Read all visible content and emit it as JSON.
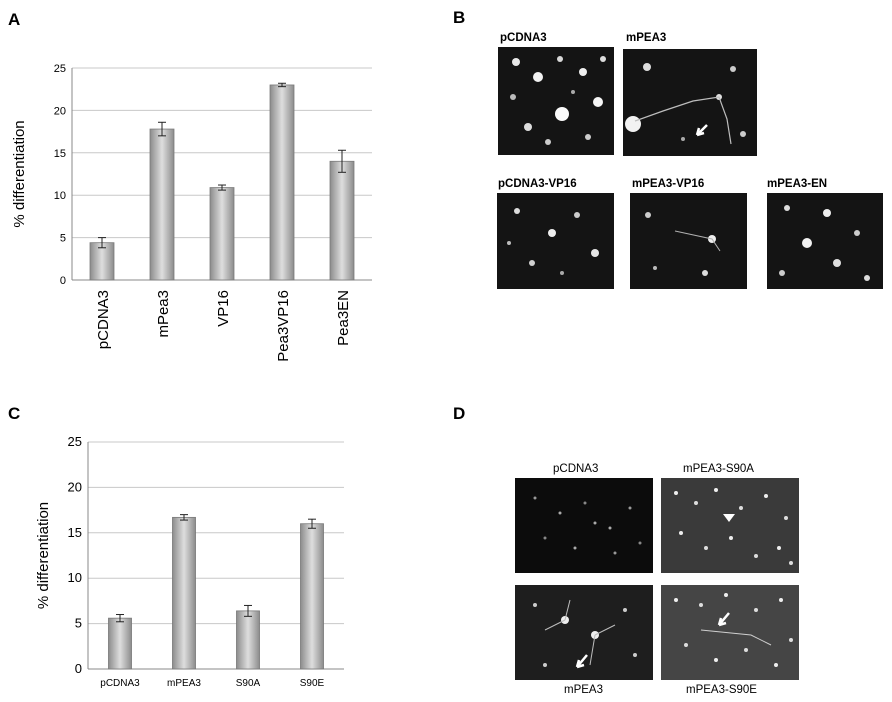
{
  "panels": {
    "A": {
      "letter": "A"
    },
    "B": {
      "letter": "B"
    },
    "C": {
      "letter": "C"
    },
    "D": {
      "letter": "D"
    }
  },
  "chart_data": [
    {
      "panel": "A",
      "type": "bar",
      "categories": [
        "pCDNA3",
        "mPea3",
        "VP16",
        "Pea3VP16",
        "Pea3EN"
      ],
      "values": [
        4.4,
        17.8,
        10.9,
        23.0,
        14.0
      ],
      "errors": [
        0.6,
        0.8,
        0.3,
        0.2,
        1.3
      ],
      "title": "",
      "xlabel": "",
      "ylabel": "% differentiation",
      "ylim": [
        0,
        25
      ],
      "yticks": [
        0,
        5,
        10,
        15,
        20,
        25
      ],
      "grid": true,
      "x_tick_rotation": "vertical"
    },
    {
      "panel": "C",
      "type": "bar",
      "categories": [
        "pCDNA3",
        "mPEA3",
        "S90A",
        "S90E"
      ],
      "values": [
        5.6,
        16.7,
        6.4,
        16.0
      ],
      "errors": [
        0.4,
        0.3,
        0.6,
        0.5
      ],
      "title": "",
      "xlabel": "",
      "ylabel": "% differentiation",
      "ylim": [
        0,
        25
      ],
      "yticks": [
        0,
        5,
        10,
        15,
        20,
        25
      ],
      "grid": true,
      "x_tick_rotation": "horizontal"
    }
  ],
  "micrographs_B": [
    {
      "label": "pCDNA3"
    },
    {
      "label": "mPEA3"
    },
    {
      "label": "pCDNA3-VP16"
    },
    {
      "label": "mPEA3-VP16"
    },
    {
      "label": "mPEA3-EN"
    }
  ],
  "micrographs_D": [
    {
      "label": "pCDNA3"
    },
    {
      "label": "mPEA3-S90A"
    },
    {
      "label": "mPEA3"
    },
    {
      "label": "mPEA3-S90E"
    }
  ]
}
